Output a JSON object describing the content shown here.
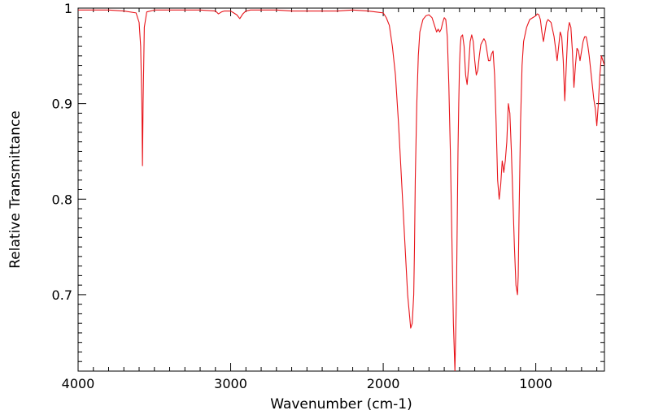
{
  "chart_data": {
    "type": "line",
    "xlabel": "Wavenumber (cm-1)",
    "ylabel": "Relative Transmittance",
    "xlim": [
      4000,
      550
    ],
    "ylim": [
      0.62,
      1.0
    ],
    "x_reversed": true,
    "xticks": [
      {
        "value": 4000,
        "label": "4000"
      },
      {
        "value": 3000,
        "label": "3000"
      },
      {
        "value": 2000,
        "label": "2000"
      },
      {
        "value": 1000,
        "label": "1000"
      }
    ],
    "yticks": [
      {
        "value": 1.0,
        "label": "1"
      },
      {
        "value": 0.9,
        "label": "0.9"
      },
      {
        "value": 0.8,
        "label": "0.8"
      },
      {
        "value": 0.7,
        "label": "0.7"
      }
    ],
    "grid": false,
    "series": [
      {
        "color": "#e8141a",
        "x": [
          4000,
          3900,
          3800,
          3700,
          3620,
          3600,
          3590,
          3582,
          3578,
          3574,
          3566,
          3550,
          3500,
          3400,
          3300,
          3200,
          3100,
          3080,
          3060,
          3040,
          3000,
          2980,
          2960,
          2940,
          2920,
          2900,
          2870,
          2800,
          2700,
          2600,
          2500,
          2400,
          2300,
          2200,
          2100,
          2050,
          2000,
          1980,
          1960,
          1940,
          1920,
          1900,
          1880,
          1860,
          1840,
          1820,
          1810,
          1800,
          1795,
          1790,
          1780,
          1770,
          1760,
          1740,
          1720,
          1700,
          1680,
          1660,
          1650,
          1640,
          1630,
          1620,
          1610,
          1600,
          1590,
          1580,
          1570,
          1560,
          1550,
          1540,
          1530,
          1520,
          1510,
          1505,
          1500,
          1495,
          1490,
          1480,
          1470,
          1460,
          1450,
          1440,
          1430,
          1420,
          1410,
          1400,
          1390,
          1380,
          1370,
          1360,
          1350,
          1340,
          1330,
          1320,
          1310,
          1300,
          1290,
          1280,
          1270,
          1260,
          1250,
          1240,
          1230,
          1220,
          1215,
          1210,
          1200,
          1190,
          1185,
          1180,
          1170,
          1160,
          1150,
          1140,
          1130,
          1120,
          1115,
          1110,
          1100,
          1090,
          1080,
          1060,
          1040,
          1020,
          1000,
          990,
          980,
          970,
          960,
          950,
          940,
          930,
          920,
          900,
          880,
          860,
          850,
          840,
          830,
          820,
          810,
          800,
          790,
          780,
          770,
          760,
          750,
          740,
          730,
          720,
          710,
          700,
          690,
          680,
          670,
          660,
          650,
          640,
          630,
          620,
          610,
          600,
          590,
          580,
          570,
          560,
          550
        ],
        "y": [
          0.998,
          0.998,
          0.998,
          0.997,
          0.995,
          0.985,
          0.96,
          0.9,
          0.835,
          0.9,
          0.98,
          0.996,
          0.998,
          0.998,
          0.998,
          0.998,
          0.997,
          0.994,
          0.996,
          0.997,
          0.997,
          0.995,
          0.993,
          0.989,
          0.994,
          0.997,
          0.998,
          0.998,
          0.998,
          0.997,
          0.997,
          0.997,
          0.997,
          0.998,
          0.997,
          0.996,
          0.995,
          0.99,
          0.982,
          0.96,
          0.93,
          0.88,
          0.82,
          0.76,
          0.7,
          0.665,
          0.67,
          0.7,
          0.75,
          0.82,
          0.9,
          0.95,
          0.975,
          0.988,
          0.992,
          0.993,
          0.99,
          0.98,
          0.975,
          0.978,
          0.975,
          0.978,
          0.985,
          0.99,
          0.988,
          0.97,
          0.92,
          0.85,
          0.76,
          0.67,
          0.62,
          0.7,
          0.85,
          0.9,
          0.94,
          0.96,
          0.97,
          0.972,
          0.96,
          0.93,
          0.92,
          0.94,
          0.965,
          0.972,
          0.965,
          0.945,
          0.93,
          0.935,
          0.95,
          0.962,
          0.965,
          0.968,
          0.965,
          0.955,
          0.945,
          0.945,
          0.952,
          0.955,
          0.93,
          0.88,
          0.82,
          0.8,
          0.815,
          0.84,
          0.835,
          0.828,
          0.84,
          0.86,
          0.88,
          0.9,
          0.89,
          0.85,
          0.8,
          0.75,
          0.71,
          0.7,
          0.72,
          0.78,
          0.88,
          0.94,
          0.965,
          0.98,
          0.988,
          0.99,
          0.992,
          0.994,
          0.993,
          0.988,
          0.975,
          0.965,
          0.975,
          0.985,
          0.988,
          0.985,
          0.97,
          0.945,
          0.96,
          0.975,
          0.97,
          0.945,
          0.903,
          0.94,
          0.975,
          0.985,
          0.98,
          0.955,
          0.917,
          0.94,
          0.958,
          0.955,
          0.945,
          0.955,
          0.965,
          0.97,
          0.97,
          0.962,
          0.95,
          0.935,
          0.92,
          0.905,
          0.895,
          0.877,
          0.9,
          0.93,
          0.95,
          0.945,
          0.94
        ]
      }
    ]
  }
}
